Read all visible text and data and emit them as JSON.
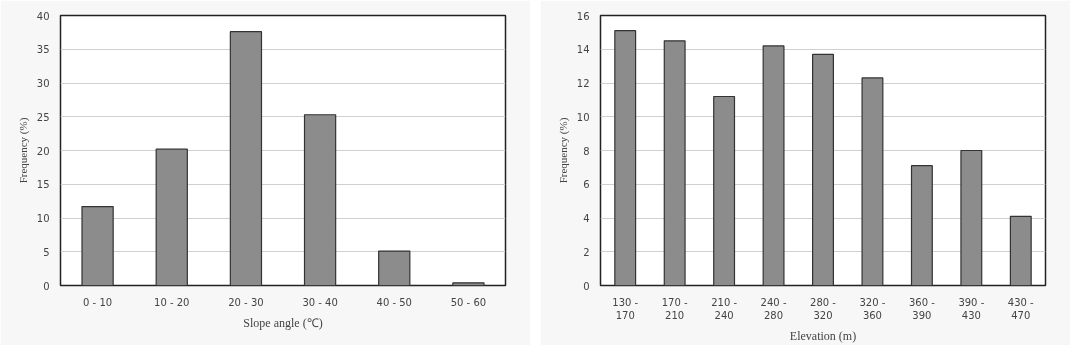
{
  "chart_data": [
    {
      "type": "bar",
      "xlabel": "Slope angle (℃)",
      "ylabel": "Frequency (%)",
      "categories": [
        "0 - 10",
        "10 - 20",
        "20 - 30",
        "30 - 40",
        "40 - 50",
        "50 - 60"
      ],
      "values": [
        11.7,
        20.2,
        37.6,
        25.3,
        5.1,
        0.4
      ],
      "color": "#8c8c8c",
      "ylim": [
        0,
        40
      ],
      "yticks": [
        0,
        5,
        10,
        15,
        20,
        25,
        30,
        35,
        40
      ],
      "grid": "y"
    },
    {
      "type": "bar",
      "xlabel": "Elevation (m)",
      "ylabel": "Frequency (%)",
      "categories": [
        "130 -\n170",
        "170 -\n210",
        "210 -\n240",
        "240 -\n280",
        "280 -\n320",
        "320 -\n360",
        "360 -\n390",
        "390 -\n430",
        "430 -\n470"
      ],
      "values": [
        15.1,
        14.5,
        11.2,
        14.2,
        13.7,
        12.3,
        7.1,
        8.0,
        4.1
      ],
      "color": "#8c8c8c",
      "ylim": [
        0,
        16
      ],
      "yticks": [
        0,
        2,
        4,
        6,
        8,
        10,
        12,
        14,
        16
      ],
      "grid": "y"
    }
  ]
}
